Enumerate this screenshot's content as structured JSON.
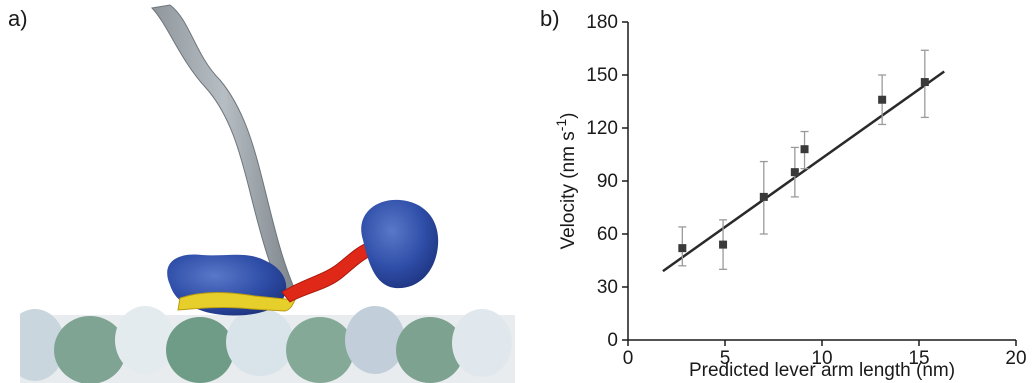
{
  "panels": {
    "a_label": "a)",
    "b_label": "b)"
  },
  "chart_data": {
    "type": "scatter",
    "title": "",
    "xlabel": "Predicted lever arm length (nm)",
    "ylabel": "Velocity (nm s",
    "ylabel_superscript": "-1",
    "ylabel_suffix": ")",
    "xlim": [
      0,
      20
    ],
    "ylim": [
      0,
      180
    ],
    "xticks": [
      0,
      5,
      10,
      15,
      20
    ],
    "yticks": [
      0,
      30,
      60,
      90,
      120,
      150,
      180
    ],
    "grid": false,
    "points": [
      {
        "x": 2.8,
        "y": 52,
        "yerr_low": 42,
        "yerr_high": 64
      },
      {
        "x": 4.9,
        "y": 54,
        "yerr_low": 40,
        "yerr_high": 68
      },
      {
        "x": 7.0,
        "y": 81,
        "yerr_low": 60,
        "yerr_high": 101
      },
      {
        "x": 8.6,
        "y": 95,
        "yerr_low": 81,
        "yerr_high": 109
      },
      {
        "x": 9.1,
        "y": 108,
        "yerr_low": 97,
        "yerr_high": 118
      },
      {
        "x": 13.1,
        "y": 136,
        "yerr_low": 122,
        "yerr_high": 150
      },
      {
        "x": 15.3,
        "y": 146,
        "yerr_low": 126,
        "yerr_high": 164
      }
    ],
    "fit_line": {
      "x": [
        1.8,
        16.3
      ],
      "y": [
        39,
        152
      ]
    }
  }
}
